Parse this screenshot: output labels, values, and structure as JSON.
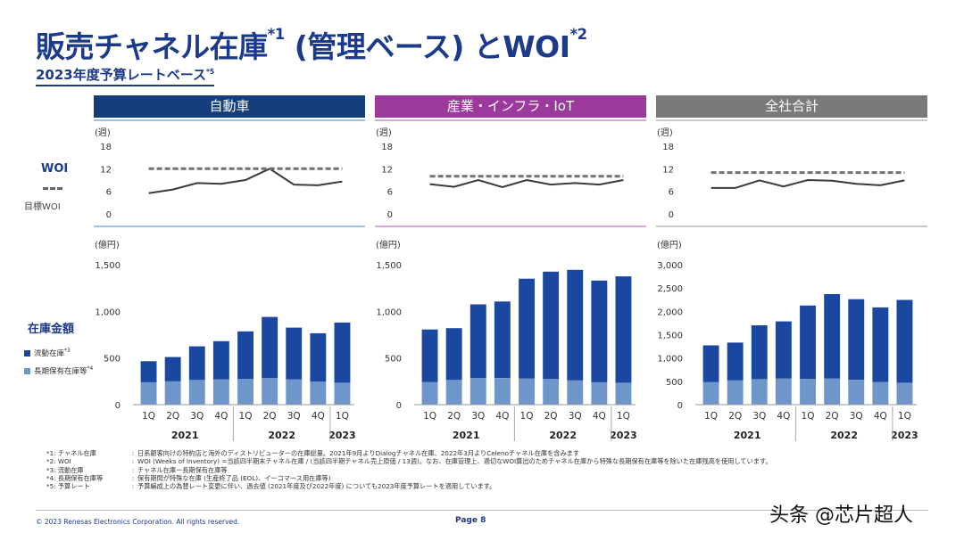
{
  "header": {
    "title": "販売チャネル在庫",
    "title_sup1": "*1",
    "title_mid": " (管理ベース) とWOI",
    "title_sup2": "*2",
    "subtitle": "2023年度予算レートベース",
    "subtitle_sup": "*5"
  },
  "labels": {
    "woi": "WOI",
    "target_woi": "目標WOI",
    "inventory": "在庫金額",
    "legend_current": "流動在庫",
    "legend_current_sup": "*3",
    "legend_longterm": "長期保有在庫等",
    "legend_longterm_sup": "*4"
  },
  "colors": {
    "title": "#1c3a8a",
    "auto_header": "#153f7a",
    "industrial_header": "#9b3a9c",
    "total_header": "#7a7a7a",
    "bar_current": "#1a47a0",
    "bar_longterm": "#6f96cb",
    "woi_line": "#3a3a3a",
    "target_line": "#707070"
  },
  "chart_data": [
    {
      "type": "line",
      "segment": "自動車",
      "title": "自動車",
      "unit": "(週)",
      "categories": [
        "1Q",
        "2Q",
        "3Q",
        "4Q",
        "1Q",
        "2Q",
        "3Q",
        "4Q",
        "1Q"
      ],
      "years": [
        {
          "label": "2021",
          "span": [
            0,
            3
          ]
        },
        {
          "label": "2022",
          "span": [
            4,
            7
          ]
        },
        {
          "label": "2023",
          "span": [
            8,
            8
          ]
        }
      ],
      "yticks": [
        0,
        6,
        12,
        18
      ],
      "ylim": [
        0,
        18
      ],
      "series": [
        {
          "name": "WOI",
          "values": [
            5.5,
            6.5,
            8.2,
            8,
            9,
            12,
            7.8,
            7.6,
            8.6
          ]
        },
        {
          "name": "目標WOI",
          "values": [
            12,
            12,
            12,
            12,
            12,
            12,
            12,
            12,
            12
          ],
          "style": "dashed"
        }
      ]
    },
    {
      "type": "line",
      "segment": "産業・インフラ・IoT",
      "title": "産業・インフラ・IoT",
      "unit": "(週)",
      "categories": [
        "1Q",
        "2Q",
        "3Q",
        "4Q",
        "1Q",
        "2Q",
        "3Q",
        "4Q",
        "1Q"
      ],
      "years": [
        {
          "label": "2021",
          "span": [
            0,
            3
          ]
        },
        {
          "label": "2022",
          "span": [
            4,
            7
          ]
        },
        {
          "label": "2023",
          "span": [
            8,
            8
          ]
        }
      ],
      "yticks": [
        0,
        6,
        12,
        18
      ],
      "ylim": [
        0,
        18
      ],
      "series": [
        {
          "name": "WOI",
          "values": [
            7.9,
            7.2,
            9.0,
            7.1,
            9.0,
            7.8,
            8.2,
            7.8,
            9.0
          ]
        },
        {
          "name": "目標WOI",
          "values": [
            10,
            10,
            10,
            10,
            10,
            10,
            10,
            10,
            10
          ],
          "style": "dashed"
        }
      ]
    },
    {
      "type": "line",
      "segment": "全社合計",
      "title": "全社合計",
      "unit": "(週)",
      "categories": [
        "1Q",
        "2Q",
        "3Q",
        "4Q",
        "1Q",
        "2Q",
        "3Q",
        "4Q",
        "1Q"
      ],
      "years": [
        {
          "label": "2021",
          "span": [
            0,
            3
          ]
        },
        {
          "label": "2022",
          "span": [
            4,
            7
          ]
        },
        {
          "label": "2023",
          "span": [
            8,
            8
          ]
        }
      ],
      "yticks": [
        0,
        6,
        12,
        18
      ],
      "ylim": [
        0,
        18
      ],
      "series": [
        {
          "name": "WOI",
          "values": [
            6.9,
            6.9,
            8.9,
            7.3,
            9.0,
            8.8,
            8.0,
            7.6,
            8.9
          ]
        },
        {
          "name": "目標WOI",
          "values": [
            11,
            11,
            11,
            11,
            11,
            11,
            11,
            11,
            11
          ],
          "style": "dashed"
        }
      ]
    },
    {
      "type": "bar",
      "stacked": true,
      "segment": "自動車",
      "unit": "(億円)",
      "categories": [
        "1Q",
        "2Q",
        "3Q",
        "4Q",
        "1Q",
        "2Q",
        "3Q",
        "4Q",
        "1Q"
      ],
      "years": [
        {
          "label": "2021",
          "span": [
            0,
            3
          ]
        },
        {
          "label": "2022",
          "span": [
            4,
            7
          ]
        },
        {
          "label": "2023",
          "span": [
            8,
            8
          ]
        }
      ],
      "yticks": [
        0,
        500,
        1000,
        1500
      ],
      "ytick_labels": [
        "0",
        "500",
        "1,000",
        "1,500"
      ],
      "ylim": [
        0,
        1500
      ],
      "series": [
        {
          "name": "長期保有在庫等",
          "values": [
            240,
            250,
            265,
            270,
            275,
            285,
            270,
            245,
            235
          ]
        },
        {
          "name": "流動在庫",
          "values": [
            225,
            260,
            360,
            410,
            510,
            655,
            555,
            520,
            645
          ]
        }
      ]
    },
    {
      "type": "bar",
      "stacked": true,
      "segment": "産業・インフラ・IoT",
      "unit": "(億円)",
      "categories": [
        "1Q",
        "2Q",
        "3Q",
        "4Q",
        "1Q",
        "2Q",
        "3Q",
        "4Q",
        "1Q"
      ],
      "years": [
        {
          "label": "2021",
          "span": [
            0,
            3
          ]
        },
        {
          "label": "2022",
          "span": [
            4,
            7
          ]
        },
        {
          "label": "2023",
          "span": [
            8,
            8
          ]
        }
      ],
      "yticks": [
        0,
        500,
        1000,
        1500
      ],
      "ytick_labels": [
        "0",
        "500",
        "1,000",
        "1,500"
      ],
      "ylim": [
        0,
        1500
      ],
      "series": [
        {
          "name": "長期保有在庫等",
          "values": [
            240,
            265,
            285,
            285,
            280,
            275,
            260,
            240,
            235
          ]
        },
        {
          "name": "流動在庫",
          "values": [
            565,
            555,
            790,
            820,
            1070,
            1150,
            1185,
            1090,
            1140
          ]
        }
      ]
    },
    {
      "type": "bar",
      "stacked": true,
      "segment": "全社合計",
      "unit": "(億円)",
      "categories": [
        "1Q",
        "2Q",
        "3Q",
        "4Q",
        "1Q",
        "2Q",
        "3Q",
        "4Q",
        "1Q"
      ],
      "years": [
        {
          "label": "2021",
          "span": [
            0,
            3
          ]
        },
        {
          "label": "2022",
          "span": [
            4,
            7
          ]
        },
        {
          "label": "2023",
          "span": [
            8,
            8
          ]
        }
      ],
      "yticks": [
        0,
        500,
        1000,
        1500,
        2000,
        2500,
        3000
      ],
      "ytick_labels": [
        "0",
        "500",
        "1,000",
        "1,500",
        "2,000",
        "2,500",
        "3,000"
      ],
      "ylim": [
        0,
        3000
      ],
      "series": [
        {
          "name": "長期保有在庫等",
          "values": [
            480,
            520,
            545,
            560,
            555,
            560,
            530,
            485,
            470
          ]
        },
        {
          "name": "流動在庫",
          "values": [
            790,
            810,
            1155,
            1225,
            1570,
            1810,
            1730,
            1600,
            1775
          ]
        }
      ]
    }
  ],
  "footnotes": [
    {
      "key": "*1: チャネル在庫",
      "text": "日系顧客向けの特約店と海外のディストリビューターの在庫総量。2021年9月よりDialogチャネル在庫、2022年3月よりCelenoチャネル在庫を含みます"
    },
    {
      "key": "*2: WOI",
      "text": "WOI (Weeks of Inventory) =当該四半期末チャネル在庫 / (当該四半期チャネル売上原価 / 13週)。なお、在庫管理上、適切なWOI算出のためチャネル在庫から特殊な長期保有在庫等を除いた在庫残高を使用しています。"
    },
    {
      "key": "*3: 流動在庫",
      "text": "チャネル在庫ー長期保有在庫等"
    },
    {
      "key": "*4: 長期保有在庫等",
      "text": "保有期間が特殊な在庫 (生産終了品 (EOL)、イーコマース用在庫等)"
    },
    {
      "key": "*5: 予算レート",
      "text": "予算編成上の為替レート変更に伴い、過去値 (2021年度及び2022年度) についても2023年度予算レートを適用しています。"
    }
  ],
  "footer": {
    "copyright": "© 2023 Renesas Electronics Corporation. All rights reserved.",
    "page": "Page 8",
    "watermark": "头条 @芯片超人"
  }
}
